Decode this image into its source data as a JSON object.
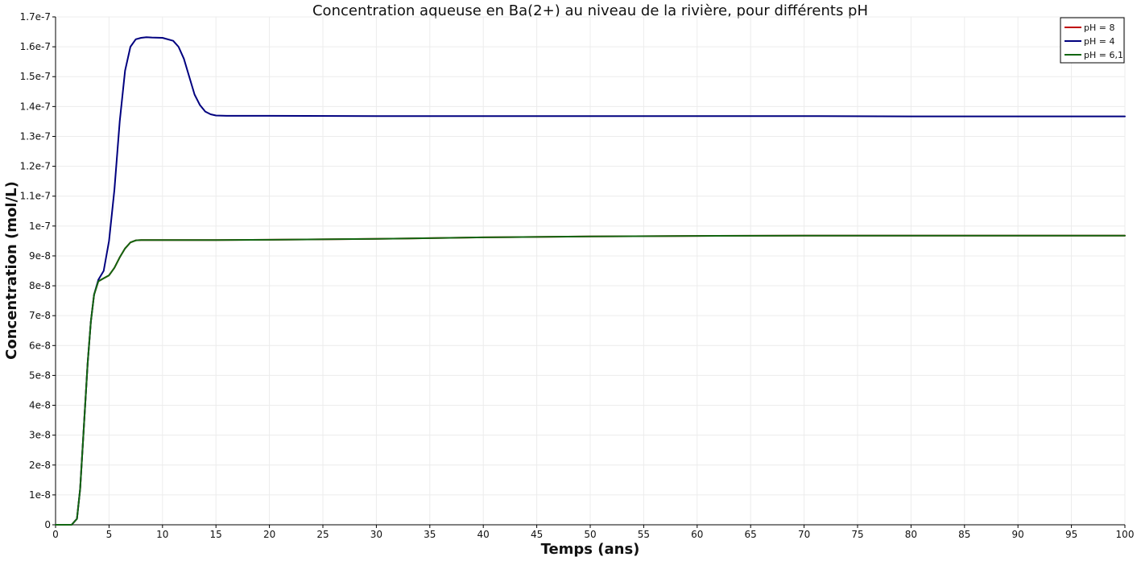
{
  "chart_data": {
    "type": "line",
    "title": "Concentration aqueuse en Ba(2+) au niveau de la rivière, pour différents pH",
    "xlabel": "Temps (ans)",
    "ylabel": "Concentration (mol/L)",
    "xlim": [
      0,
      100
    ],
    "ylim": [
      0,
      1.7e-07
    ],
    "x_ticks": [
      {
        "value": 0,
        "label": "0"
      },
      {
        "value": 5,
        "label": "5"
      },
      {
        "value": 10,
        "label": "10"
      },
      {
        "value": 15,
        "label": "15"
      },
      {
        "value": 20,
        "label": "20"
      },
      {
        "value": 25,
        "label": "25"
      },
      {
        "value": 30,
        "label": "30"
      },
      {
        "value": 35,
        "label": "35"
      },
      {
        "value": 40,
        "label": "40"
      },
      {
        "value": 45,
        "label": "45"
      },
      {
        "value": 50,
        "label": "50"
      },
      {
        "value": 55,
        "label": "55"
      },
      {
        "value": 60,
        "label": "60"
      },
      {
        "value": 65,
        "label": "65"
      },
      {
        "value": 70,
        "label": "70"
      },
      {
        "value": 75,
        "label": "75"
      },
      {
        "value": 80,
        "label": "80"
      },
      {
        "value": 85,
        "label": "85"
      },
      {
        "value": 90,
        "label": "90"
      },
      {
        "value": 95,
        "label": "95"
      },
      {
        "value": 100,
        "label": "100"
      }
    ],
    "y_ticks": [
      {
        "value": 0,
        "label": "0"
      },
      {
        "value": 1e-08,
        "label": "1e-8"
      },
      {
        "value": 2e-08,
        "label": "2e-8"
      },
      {
        "value": 3e-08,
        "label": "3e-8"
      },
      {
        "value": 4e-08,
        "label": "4e-8"
      },
      {
        "value": 5e-08,
        "label": "5e-8"
      },
      {
        "value": 6e-08,
        "label": "6e-8"
      },
      {
        "value": 7e-08,
        "label": "7e-8"
      },
      {
        "value": 8e-08,
        "label": "8e-8"
      },
      {
        "value": 9e-08,
        "label": "9e-8"
      },
      {
        "value": 1e-07,
        "label": "1e-7"
      },
      {
        "value": 1.1e-07,
        "label": "1.1e-7"
      },
      {
        "value": 1.2e-07,
        "label": "1.2e-7"
      },
      {
        "value": 1.3e-07,
        "label": "1.3e-7"
      },
      {
        "value": 1.4e-07,
        "label": "1.4e-7"
      },
      {
        "value": 1.5e-07,
        "label": "1.5e-7"
      },
      {
        "value": 1.6e-07,
        "label": "1.6e-7"
      },
      {
        "value": 1.7e-07,
        "label": "1.7e-7"
      }
    ],
    "grid": true,
    "legend_position": "top-right",
    "series": [
      {
        "name": "pH = 8",
        "color": "#c00000",
        "x": [
          0,
          1.5,
          2,
          2.3,
          2.6,
          3,
          3.3,
          3.6,
          4,
          4.5,
          5,
          5.5,
          6,
          6.5,
          7,
          7.5,
          8,
          9,
          10,
          15,
          20,
          30,
          40,
          50,
          60,
          70,
          80,
          90,
          100
        ],
        "y": [
          0,
          0,
          2e-09,
          1.2e-08,
          3e-08,
          5.4e-08,
          6.8e-08,
          7.7e-08,
          8.15e-08,
          8.25e-08,
          8.35e-08,
          8.6e-08,
          8.95e-08,
          9.25e-08,
          9.45e-08,
          9.52e-08,
          9.53e-08,
          9.53e-08,
          9.53e-08,
          9.53e-08,
          9.54e-08,
          9.57e-08,
          9.62e-08,
          9.65e-08,
          9.67e-08,
          9.68e-08,
          9.68e-08,
          9.68e-08,
          9.68e-08
        ]
      },
      {
        "name": "pH = 4",
        "color": "#00007f",
        "x": [
          0,
          1.5,
          2,
          2.3,
          2.6,
          3,
          3.3,
          3.6,
          4,
          4.5,
          5,
          5.5,
          6,
          6.5,
          7,
          7.5,
          8,
          8.5,
          9,
          10,
          11,
          11.5,
          12,
          12.5,
          13,
          13.5,
          14,
          14.5,
          15,
          16,
          20,
          30,
          40,
          50,
          60,
          70,
          80,
          90,
          100
        ],
        "y": [
          0,
          0,
          2e-09,
          1.2e-08,
          3e-08,
          5.4e-08,
          6.8e-08,
          7.7e-08,
          8.2e-08,
          8.5e-08,
          9.5e-08,
          1.12e-07,
          1.35e-07,
          1.52e-07,
          1.6e-07,
          1.625e-07,
          1.63e-07,
          1.632e-07,
          1.631e-07,
          1.63e-07,
          1.62e-07,
          1.6e-07,
          1.56e-07,
          1.5e-07,
          1.44e-07,
          1.405e-07,
          1.383e-07,
          1.374e-07,
          1.37e-07,
          1.369e-07,
          1.369e-07,
          1.368e-07,
          1.368e-07,
          1.368e-07,
          1.368e-07,
          1.368e-07,
          1.367e-07,
          1.367e-07,
          1.367e-07
        ]
      },
      {
        "name": "pH = 6,1",
        "color": "#116611",
        "x": [
          0,
          1.5,
          2,
          2.3,
          2.6,
          3,
          3.3,
          3.6,
          4,
          4.5,
          5,
          5.5,
          6,
          6.5,
          7,
          7.5,
          8,
          9,
          10,
          15,
          20,
          30,
          40,
          50,
          60,
          70,
          80,
          90,
          100
        ],
        "y": [
          0,
          0,
          2e-09,
          1.2e-08,
          3e-08,
          5.4e-08,
          6.8e-08,
          7.7e-08,
          8.15e-08,
          8.25e-08,
          8.35e-08,
          8.6e-08,
          8.95e-08,
          9.25e-08,
          9.45e-08,
          9.52e-08,
          9.53e-08,
          9.53e-08,
          9.53e-08,
          9.53e-08,
          9.54e-08,
          9.57e-08,
          9.62e-08,
          9.65e-08,
          9.67e-08,
          9.68e-08,
          9.68e-08,
          9.68e-08,
          9.68e-08
        ]
      }
    ]
  }
}
